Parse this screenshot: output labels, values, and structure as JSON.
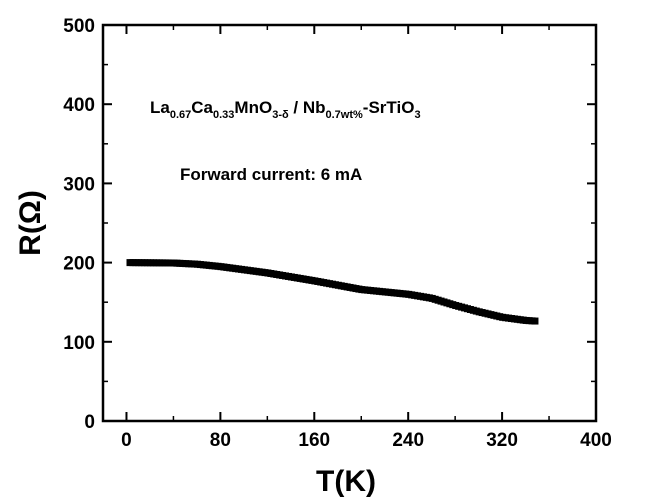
{
  "chart_data": {
    "type": "scatter",
    "xlabel": "T(K)",
    "ylabel": "R(Ω)",
    "xlim": [
      -20,
      400
    ],
    "ylim": [
      0,
      500
    ],
    "x_ticks": [
      0,
      80,
      160,
      240,
      320,
      400
    ],
    "y_ticks": [
      0,
      100,
      200,
      300,
      400,
      500
    ],
    "grid": false,
    "marker": "filled-square",
    "marker_color": "#000000",
    "annotations": {
      "formula": {
        "parts": [
          {
            "t": "La",
            "sub": false
          },
          {
            "t": "0.67",
            "sub": true
          },
          {
            "t": "Ca",
            "sub": false
          },
          {
            "t": "0.33",
            "sub": true
          },
          {
            "t": "MnO",
            "sub": false
          },
          {
            "t": "3-δ",
            "sub": true
          },
          {
            "t": " / Nb",
            "sub": false
          },
          {
            "t": "0.7wt%",
            "sub": true
          },
          {
            "t": "-SrTiO",
            "sub": false
          },
          {
            "t": "3",
            "sub": true
          }
        ]
      },
      "current": "Forward current: 6 mA"
    },
    "curve": [
      [
        3,
        200
      ],
      [
        40,
        199.5
      ],
      [
        60,
        198
      ],
      [
        80,
        195
      ],
      [
        120,
        187
      ],
      [
        160,
        177
      ],
      [
        200,
        166
      ],
      [
        240,
        160
      ],
      [
        260,
        155
      ],
      [
        280,
        146
      ],
      [
        300,
        138
      ],
      [
        320,
        131
      ],
      [
        340,
        127
      ],
      [
        350,
        126
      ]
    ]
  }
}
